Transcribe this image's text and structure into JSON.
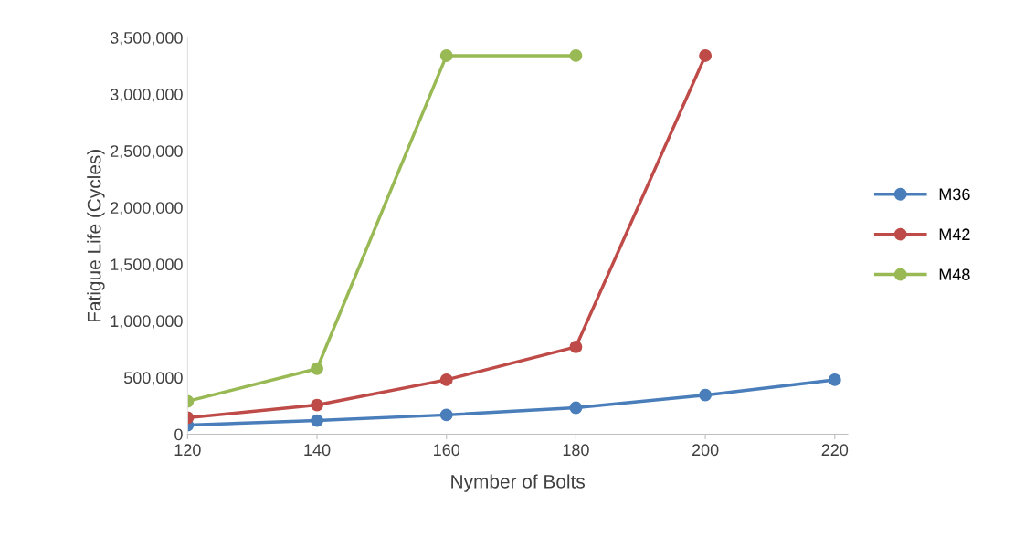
{
  "chart_data": {
    "type": "line",
    "xlabel": "Nymber of Bolts",
    "ylabel": "Fatigue Life (Cycles)",
    "categories": [
      "120",
      "140",
      "160",
      "180",
      "200",
      "220"
    ],
    "series": [
      {
        "name": "M36",
        "color": "#4a7ebb",
        "values": [
          80000,
          120000,
          170000,
          233000,
          345000,
          480000
        ]
      },
      {
        "name": "M42",
        "color": "#be4b48",
        "values": [
          145000,
          257000,
          480000,
          770000,
          3340000,
          null
        ]
      },
      {
        "name": "M48",
        "color": "#98b954",
        "values": [
          290000,
          578000,
          3340000,
          3340000,
          null,
          null
        ]
      }
    ],
    "ylim": [
      0,
      3500000
    ],
    "yticks": [
      {
        "value": 0,
        "label": "0"
      },
      {
        "value": 500000,
        "label": "500,000"
      },
      {
        "value": 1000000,
        "label": "1,000,000"
      },
      {
        "value": 1500000,
        "label": "1,500,000"
      },
      {
        "value": 2000000,
        "label": "2,000,000"
      },
      {
        "value": 2500000,
        "label": "2,500,000"
      },
      {
        "value": 3000000,
        "label": "3,000,000"
      },
      {
        "value": 3500000,
        "label": "3,500,000"
      }
    ],
    "grid": false,
    "legend": "right",
    "marker": "circle",
    "line_style": "solid"
  }
}
